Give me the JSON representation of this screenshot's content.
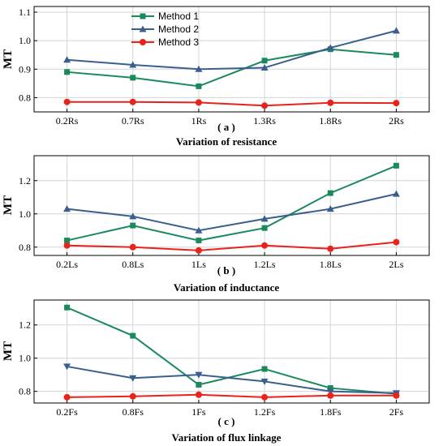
{
  "colors": {
    "method1": "#1a8a5c",
    "method2": "#3a5f8f",
    "method3": "#e8231b",
    "grid": "#d4d4d4",
    "axis": "#000000"
  },
  "chart_data": [
    {
      "type": "line",
      "categories": [
        "0.2Rs",
        "0.7Rs",
        "1Rs",
        "1.3Rs",
        "1.8Rs",
        "2Rs"
      ],
      "ylabel": "MT",
      "ylim": [
        0.75,
        1.12
      ],
      "yticks": [
        "0.8",
        "0.9",
        "1.0",
        "1.1"
      ],
      "ytick_values": [
        0.8,
        0.9,
        1.0,
        1.1
      ],
      "caption_tag": "( a )",
      "caption": "Variation of  resistance",
      "legend": "top-left",
      "grid": true,
      "series": [
        {
          "name": "Method 1",
          "marker": "square",
          "values": [
            0.89,
            0.87,
            0.84,
            0.93,
            0.97,
            0.95
          ]
        },
        {
          "name": "Method 2",
          "marker": "triangle-up",
          "values": [
            0.933,
            0.915,
            0.9,
            0.905,
            0.975,
            1.035
          ]
        },
        {
          "name": "Method 3",
          "marker": "circle",
          "values": [
            0.785,
            0.785,
            0.783,
            0.772,
            0.782,
            0.781
          ]
        }
      ]
    },
    {
      "type": "line",
      "categories": [
        "0.2Ls",
        "0.8Ls",
        "1Ls",
        "1.2Ls",
        "1.8Ls",
        "2Ls"
      ],
      "ylabel": "MT",
      "ylim": [
        0.75,
        1.35
      ],
      "yticks": [
        "0.8",
        "1.0",
        "1.2"
      ],
      "ytick_values": [
        0.8,
        1.0,
        1.2
      ],
      "caption_tag": "( b )",
      "caption": "Variation of inductance",
      "grid": true,
      "series": [
        {
          "marker": "square",
          "values": [
            0.84,
            0.93,
            0.84,
            0.915,
            1.125,
            1.29
          ]
        },
        {
          "marker": "triangle-up",
          "values": [
            1.03,
            0.985,
            0.9,
            0.97,
            1.03,
            1.12
          ]
        },
        {
          "marker": "circle",
          "values": [
            0.81,
            0.8,
            0.78,
            0.81,
            0.79,
            0.83
          ]
        }
      ]
    },
    {
      "type": "line",
      "categories": [
        "0.2Fs",
        "0.8Fs",
        "1Fs",
        "1.2Fs",
        "1.8Fs",
        "2Fs"
      ],
      "ylabel": "MT",
      "ylim": [
        0.73,
        1.35
      ],
      "yticks": [
        "0.8",
        "1.0",
        "1.2"
      ],
      "ytick_values": [
        0.8,
        1.0,
        1.2
      ],
      "caption_tag": "( c )",
      "caption": "Variation of flux linkage",
      "grid": true,
      "series": [
        {
          "marker": "square",
          "values": [
            1.305,
            1.135,
            0.84,
            0.935,
            0.82,
            0.785
          ]
        },
        {
          "marker": "triangle-down",
          "values": [
            0.95,
            0.88,
            0.9,
            0.86,
            0.8,
            0.79
          ]
        },
        {
          "marker": "circle",
          "values": [
            0.765,
            0.77,
            0.78,
            0.765,
            0.775,
            0.775
          ]
        }
      ]
    }
  ]
}
